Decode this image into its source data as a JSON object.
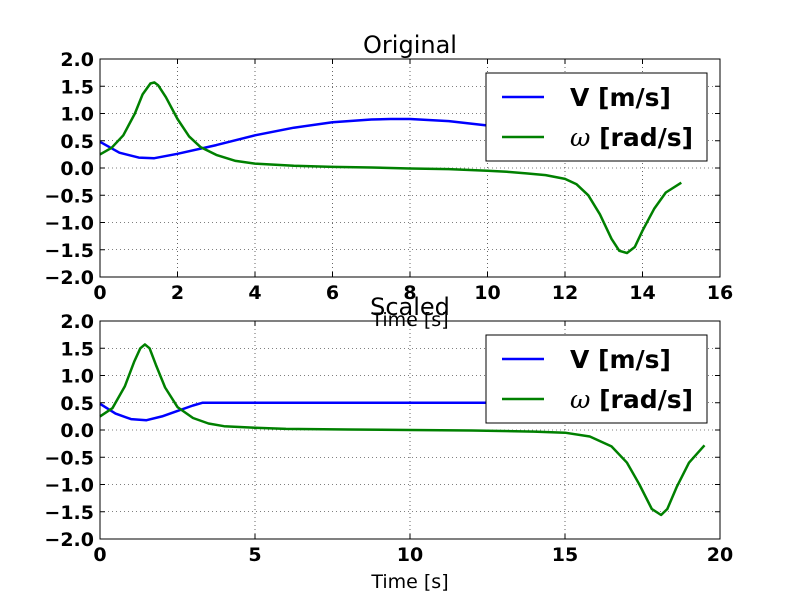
{
  "chart_data": [
    {
      "type": "line",
      "title": "Original",
      "xlabel": "Time [s]",
      "ylabel": "",
      "xlim": [
        0,
        16
      ],
      "ylim": [
        -2.0,
        2.0
      ],
      "xticks": [
        "0",
        "2",
        "4",
        "6",
        "8",
        "10",
        "12",
        "14",
        "16"
      ],
      "yticks": [
        "2.0",
        "1.5",
        "1.0",
        "0.5",
        "0.0",
        "−0.5",
        "−1.0",
        "−1.5",
        "−2.0"
      ],
      "grid": true,
      "legend_position": "top-right",
      "series": [
        {
          "name": "V [m/s]",
          "color": "#0000ff",
          "x": [
            0,
            0.5,
            1.0,
            1.4,
            2.0,
            3.0,
            4.0,
            5.0,
            6.0,
            7.0,
            7.5,
            8.0,
            9.0,
            10.0,
            11.0,
            12.0,
            13.0,
            14.0,
            15.0
          ],
          "y": [
            0.48,
            0.28,
            0.19,
            0.18,
            0.26,
            0.42,
            0.6,
            0.74,
            0.84,
            0.89,
            0.9,
            0.9,
            0.86,
            0.78,
            0.68,
            0.57,
            0.46,
            0.38,
            0.32
          ]
        },
        {
          "name": "ω [rad/s]",
          "color": "#008000",
          "x": [
            0,
            0.3,
            0.6,
            0.9,
            1.1,
            1.3,
            1.4,
            1.5,
            1.7,
            2.0,
            2.3,
            2.6,
            3.0,
            3.5,
            4.0,
            5.0,
            6.0,
            7.0,
            8.0,
            9.0,
            10.0,
            10.5,
            11.0,
            11.5,
            12.0,
            12.3,
            12.6,
            12.9,
            13.2,
            13.4,
            13.6,
            13.8,
            14.0,
            14.3,
            14.6,
            15.0
          ],
          "y": [
            0.25,
            0.37,
            0.6,
            1.0,
            1.35,
            1.55,
            1.57,
            1.52,
            1.3,
            0.9,
            0.58,
            0.38,
            0.24,
            0.13,
            0.08,
            0.04,
            0.02,
            0.01,
            -0.01,
            -0.02,
            -0.05,
            -0.07,
            -0.1,
            -0.13,
            -0.2,
            -0.3,
            -0.5,
            -0.85,
            -1.3,
            -1.52,
            -1.56,
            -1.45,
            -1.15,
            -0.75,
            -0.45,
            -0.27
          ]
        }
      ]
    },
    {
      "type": "line",
      "title": "Scaled",
      "xlabel": "Time [s]",
      "ylabel": "",
      "xlim": [
        0,
        20
      ],
      "ylim": [
        -2.0,
        2.0
      ],
      "xticks": [
        "0",
        "5",
        "10",
        "15",
        "20"
      ],
      "yticks": [
        "2.0",
        "1.5",
        "1.0",
        "0.5",
        "0.0",
        "−0.5",
        "−1.0",
        "−1.5",
        "−2.0"
      ],
      "grid": true,
      "legend_position": "top-right",
      "series": [
        {
          "name": "V [m/s]",
          "color": "#0000ff",
          "x": [
            0,
            0.5,
            1.0,
            1.5,
            2.0,
            2.5,
            3.0,
            3.3,
            5.0,
            10.0,
            12.5
          ],
          "y": [
            0.48,
            0.3,
            0.2,
            0.18,
            0.25,
            0.35,
            0.45,
            0.5,
            0.5,
            0.5,
            0.5
          ]
        },
        {
          "name": "ω [rad/s]",
          "color": "#008000",
          "x": [
            0,
            0.4,
            0.8,
            1.1,
            1.3,
            1.45,
            1.6,
            1.8,
            2.1,
            2.5,
            3.0,
            3.5,
            4.0,
            5.0,
            6.0,
            8.0,
            10.0,
            12.0,
            14.0,
            15.0,
            15.8,
            16.5,
            17.0,
            17.4,
            17.8,
            18.1,
            18.3,
            18.6,
            19.0,
            19.5
          ],
          "y": [
            0.25,
            0.4,
            0.8,
            1.25,
            1.5,
            1.57,
            1.5,
            1.2,
            0.78,
            0.42,
            0.22,
            0.12,
            0.07,
            0.04,
            0.02,
            0.01,
            0.0,
            -0.01,
            -0.03,
            -0.05,
            -0.12,
            -0.3,
            -0.6,
            -1.0,
            -1.45,
            -1.56,
            -1.45,
            -1.05,
            -0.6,
            -0.28
          ]
        }
      ]
    }
  ]
}
